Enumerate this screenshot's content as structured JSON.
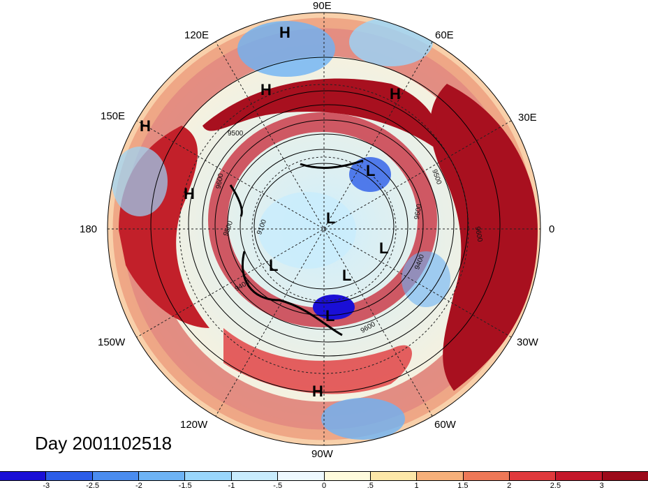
{
  "title": "Day 2001102518",
  "longitude_labels": {
    "e90": "90E",
    "e60": "60E",
    "e30": "30E",
    "e0": "0",
    "w30": "30W",
    "w60": "60W",
    "w90": "90W",
    "w120": "120W",
    "w150": "150W",
    "e180": "180",
    "e150": "150E",
    "e120": "120E"
  },
  "pressure_systems": [
    {
      "label": "H"
    },
    {
      "label": "H"
    },
    {
      "label": "H"
    },
    {
      "label": "H"
    },
    {
      "label": "H"
    },
    {
      "label": "H"
    },
    {
      "label": "L"
    },
    {
      "label": "L"
    },
    {
      "label": "L"
    },
    {
      "label": "L"
    },
    {
      "label": "L"
    },
    {
      "label": "L"
    }
  ],
  "contour_labels": [
    "9500",
    "9600",
    "9500",
    "9100",
    "9400",
    "9600",
    "9500",
    "9600",
    "9400",
    "9600"
  ],
  "colorbar": {
    "ticks": [
      "-3",
      "-2.5",
      "-2",
      "-1.5",
      "-1",
      "-.5",
      "0",
      ".5",
      "1",
      "1.5",
      "2",
      "2.5",
      "3"
    ],
    "colors": [
      "#1a0fd6",
      "#2c5de8",
      "#4a8cef",
      "#6db3f5",
      "#99d6fb",
      "#c8ecfd",
      "#eef9ff",
      "#fffbdc",
      "#fde7a8",
      "#f7b07a",
      "#ee7857",
      "#e0393c",
      "#c4172a",
      "#9c0a1a"
    ]
  }
}
